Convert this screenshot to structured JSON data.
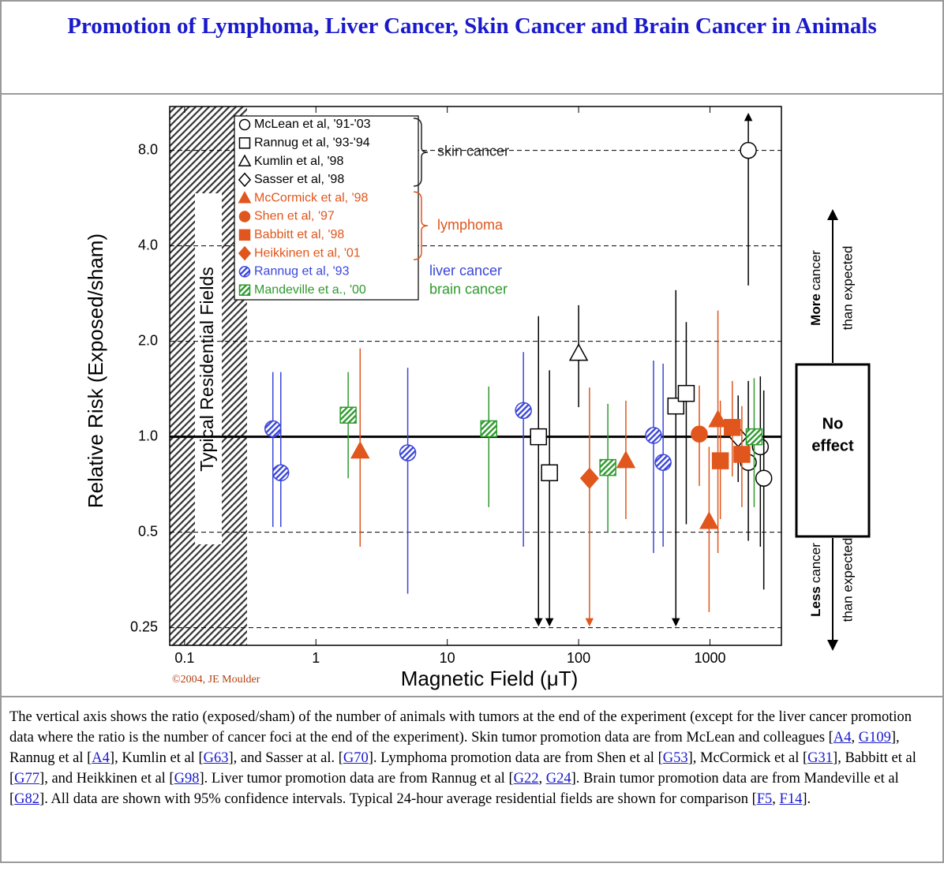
{
  "header": {
    "title": "Promotion of Lymphoma, Liver Cancer, Skin Cancer and Brain Cancer in Animals"
  },
  "chart_data": {
    "type": "scatter",
    "x_label": "Magnetic Field (μT)",
    "y_label": "Relative Risk (Exposed/sham)",
    "xlim": [
      0.077,
      3500
    ],
    "ylim": [
      0.22,
      11
    ],
    "xlog": true,
    "ylog": true,
    "grid": true,
    "reference_line": 1,
    "xticks": [
      0.1,
      1,
      10,
      100,
      1000
    ],
    "yticks": [
      0.25,
      0.5,
      {
        "value": 1,
        "label": "1.0"
      },
      {
        "value": 2,
        "label": "2.0"
      },
      {
        "value": 4,
        "label": "4.0"
      },
      {
        "value": 8,
        "label": "8.0"
      }
    ],
    "band_label": "Typical Residential Fields",
    "legend_groups": [
      {
        "label": "skin cancer",
        "color": "#222222"
      },
      {
        "label": "lymphoma",
        "color": "#e0561c"
      },
      {
        "label": "liver cancer",
        "color": "#3a45d8"
      },
      {
        "label": "brain cancer",
        "color": "#2e9a2e"
      }
    ],
    "series": [
      {
        "name": "McLean et al, '91-'03",
        "color": "#222222",
        "marker": "circle",
        "fill": "none",
        "x": [
          1960,
          1960,
          2420,
          2570
        ],
        "values": [
          8.0,
          0.83,
          0.93,
          0.74
        ],
        "lower": [
          3.0,
          0.47,
          0.45,
          0.33
        ],
        "upper": [
          10.2,
          1.5,
          1.55,
          1.4
        ]
      },
      {
        "name": "Rannug et al, '93-'94",
        "color": "#222222",
        "marker": "square",
        "fill": "none",
        "x": [
          49.5,
          60,
          550,
          660
        ],
        "values": [
          1.0,
          0.77,
          1.25,
          1.37
        ],
        "lower": [
          0.26,
          0.26,
          0.26,
          0.53
        ],
        "upper": [
          2.4,
          1.62,
          2.9,
          2.3
        ]
      },
      {
        "name": "Kumlin et al, '98",
        "color": "#222222",
        "marker": "triangle",
        "fill": "none",
        "x": [
          100
        ],
        "values": [
          1.83
        ],
        "lower": [
          1.24
        ],
        "upper": [
          2.6
        ]
      },
      {
        "name": "Sasser et al, '98",
        "color": "#222222",
        "marker": "diamond",
        "fill": "none",
        "x": [
          1640
        ],
        "values": [
          1.0
        ],
        "lower": [
          0.72
        ],
        "upper": [
          1.35
        ]
      },
      {
        "name": "McCormick et al, '98",
        "color": "#e0561c",
        "marker": "triangle",
        "fill": "solid",
        "x": [
          2.17,
          229,
          985,
          1150
        ],
        "values": [
          0.9,
          0.84,
          0.54,
          1.13
        ],
        "lower": [
          0.45,
          0.55,
          0.28,
          0.43
        ],
        "upper": [
          1.9,
          1.3,
          0.93,
          2.5
        ]
      },
      {
        "name": "Shen et al, '97",
        "color": "#e0561c",
        "marker": "circle",
        "fill": "solid",
        "x": [
          830
        ],
        "values": [
          1.02
        ],
        "lower": [
          0.7
        ],
        "upper": [
          1.45
        ]
      },
      {
        "name": "Babbitt et al, '98",
        "color": "#e0561c",
        "marker": "square",
        "fill": "solid",
        "x": [
          1200,
          1480,
          1750
        ],
        "values": [
          0.84,
          1.07,
          0.88
        ],
        "lower": [
          0.55,
          0.75,
          0.6
        ],
        "upper": [
          1.3,
          1.5,
          1.25
        ]
      },
      {
        "name": "Heikkinen et al, '01",
        "color": "#e0561c",
        "marker": "diamond",
        "fill": "solid",
        "x": [
          121
        ],
        "values": [
          0.74
        ],
        "lower": [
          0.26
        ],
        "upper": [
          1.43
        ]
      },
      {
        "name": "Rannug et al, '93",
        "color": "#3a45d8",
        "marker": "circle",
        "fill": "hatch",
        "x": [
          0.47,
          0.54,
          5.0,
          38,
          372,
          440
        ],
        "values": [
          1.06,
          0.77,
          0.89,
          1.21,
          1.01,
          0.83
        ],
        "lower": [
          0.52,
          0.52,
          0.32,
          0.45,
          0.43,
          0.45
        ],
        "upper": [
          1.6,
          1.6,
          1.65,
          1.85,
          1.74,
          1.7
        ]
      },
      {
        "name": "Mandeville et a., '00",
        "color": "#2e9a2e",
        "marker": "square",
        "fill": "hatch",
        "x": [
          1.76,
          20.7,
          167,
          2170
        ],
        "values": [
          1.17,
          1.06,
          0.8,
          1.0
        ],
        "lower": [
          0.74,
          0.6,
          0.5,
          0.6
        ],
        "upper": [
          1.6,
          1.44,
          1.27,
          1.53
        ]
      }
    ],
    "no_effect": [
      "No",
      "effect"
    ],
    "more_label": [
      "More",
      "cancer",
      "than expected"
    ],
    "less_label": [
      "Less",
      "cancer",
      "than expected"
    ],
    "copyright": "©2004, JE Moulder"
  },
  "caption": [
    "The vertical axis shows the ratio (exposed/sham) of the number of animals with tumors at the end of the experiment (except for the liver cancer promotion data where the ratio is the number of cancer foci at the end of the experiment). Skin tumor promotion data are from McLean and colleagues [",
    {
      "link": "A4"
    },
    ", ",
    {
      "link": "G109"
    },
    "], Rannug et al [",
    {
      "link": "A4"
    },
    "], Kumlin et al [",
    {
      "link": "G63"
    },
    "], and Sasser at al. [",
    {
      "link": "G70"
    },
    "]. Lymphoma promotion data are from Shen et al [",
    {
      "link": "G53"
    },
    "], McCormick et al [",
    {
      "link": "G31"
    },
    "], Babbitt et al [",
    {
      "link": "G77"
    },
    "], and Heikkinen et al [",
    {
      "link": "G98"
    },
    "]. Liver tumor promotion data are from Rannug et al [",
    {
      "link": "G22"
    },
    ", ",
    {
      "link": "G24"
    },
    "]. Brain tumor promotion data are from Mandeville et al [",
    {
      "link": "G82"
    },
    "]. All data are shown with 95% confidence intervals. Typical 24-hour average residential fields are shown for comparison [",
    {
      "link": "F5"
    },
    ", ",
    {
      "link": "F14"
    },
    "]."
  ]
}
